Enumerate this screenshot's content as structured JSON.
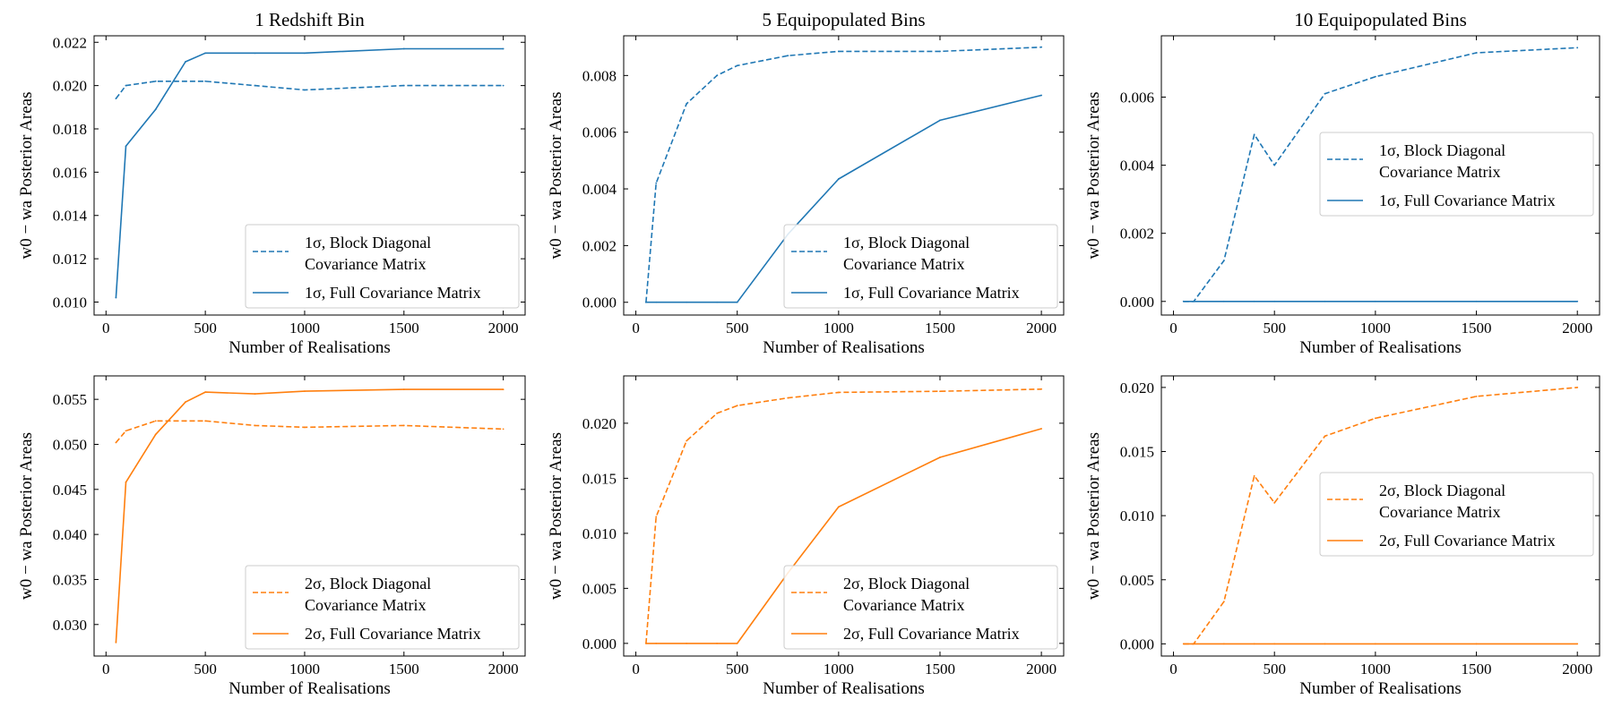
{
  "figure": {
    "colors": {
      "blue": "#1f77b4",
      "orange": "#ff7f0e"
    },
    "xlabel": "Number of Realisations",
    "ylabel": "w0 − wa Posterior Areas",
    "xticks": [
      0,
      500,
      1000,
      1500,
      2000
    ],
    "xlim": [
      -60,
      2110
    ]
  },
  "chart_data": [
    {
      "type": "line",
      "title": "1 Redshift Bin",
      "xlabel": "Number of Realisations",
      "ylabel": "w0 − wa Posterior Areas",
      "color": "#1f77b4",
      "ylim": [
        0.0094,
        0.0223
      ],
      "yticks": [
        "0.010",
        "0.012",
        "0.014",
        "0.016",
        "0.018",
        "0.020",
        "0.022"
      ],
      "legend_position": "lower-right",
      "x": [
        50,
        100,
        250,
        400,
        500,
        750,
        1000,
        1500,
        2000
      ],
      "series": [
        {
          "name": "1σ, Block Diagonal Covariance Matrix",
          "label_line1": "1σ, Block Diagonal",
          "label_line2": "Covariance Matrix",
          "style": "dashed",
          "values": [
            0.0194,
            0.02,
            0.0202,
            0.0202,
            0.0202,
            0.02,
            0.0198,
            0.02,
            0.02
          ]
        },
        {
          "name": "1σ, Full Covariance Matrix",
          "label_line1": "1σ, Full Covariance Matrix",
          "label_line2": "",
          "style": "solid",
          "values": [
            0.0102,
            0.0172,
            0.0189,
            0.0211,
            0.0215,
            0.0215,
            0.0215,
            0.0217,
            0.0217
          ]
        }
      ]
    },
    {
      "type": "line",
      "title": "5 Equipopulated Bins",
      "xlabel": "Number of Realisations",
      "ylabel": "w0 − wa Posterior Areas",
      "color": "#1f77b4",
      "ylim": [
        -0.00045,
        0.0094
      ],
      "yticks": [
        "0.000",
        "0.002",
        "0.004",
        "0.006",
        "0.008"
      ],
      "legend_position": "lower-right",
      "x": [
        50,
        100,
        250,
        400,
        500,
        750,
        1000,
        1500,
        2000
      ],
      "series": [
        {
          "name": "1σ, Block Diagonal Covariance Matrix",
          "label_line1": "1σ, Block Diagonal",
          "label_line2": "Covariance Matrix",
          "style": "dashed",
          "values": [
            0.0,
            0.0042,
            0.007,
            0.008,
            0.00835,
            0.0087,
            0.00885,
            0.00885,
            0.009
          ]
        },
        {
          "name": "1σ, Full Covariance Matrix",
          "label_line1": "1σ, Full Covariance Matrix",
          "label_line2": "",
          "style": "solid",
          "values": [
            0.0,
            0.0,
            0.0,
            0.0,
            0.0,
            0.0024,
            0.00435,
            0.00642,
            0.0073
          ]
        }
      ]
    },
    {
      "type": "line",
      "title": "10 Equipopulated Bins",
      "xlabel": "Number of Realisations",
      "ylabel": "w0 − wa Posterior Areas",
      "color": "#1f77b4",
      "ylim": [
        -0.0004,
        0.0078
      ],
      "yticks": [
        "0.000",
        "0.002",
        "0.004",
        "0.006"
      ],
      "legend_position": "center-right",
      "x": [
        50,
        100,
        250,
        400,
        500,
        750,
        1000,
        1500,
        2000
      ],
      "series": [
        {
          "name": "1σ, Block Diagonal Covariance Matrix",
          "label_line1": "1σ, Block Diagonal",
          "label_line2": "Covariance Matrix",
          "style": "dashed",
          "values": [
            0.0,
            0.0,
            0.0012,
            0.0049,
            0.004,
            0.0061,
            0.0066,
            0.0073,
            0.00745
          ]
        },
        {
          "name": "1σ, Full Covariance Matrix",
          "label_line1": "1σ, Full Covariance Matrix",
          "label_line2": "",
          "style": "solid",
          "values": [
            0.0,
            0.0,
            0.0,
            0.0,
            0.0,
            0.0,
            0.0,
            0.0,
            0.0
          ]
        }
      ]
    },
    {
      "type": "line",
      "title": "",
      "xlabel": "Number of Realisations",
      "ylabel": "w0 − wa Posterior Areas",
      "color": "#ff7f0e",
      "ylim": [
        0.0265,
        0.0576
      ],
      "yticks": [
        "0.030",
        "0.035",
        "0.040",
        "0.045",
        "0.050",
        "0.055"
      ],
      "legend_position": "lower-right",
      "x": [
        50,
        100,
        250,
        400,
        500,
        750,
        1000,
        1500,
        2000
      ],
      "series": [
        {
          "name": "2σ, Block Diagonal Covariance Matrix",
          "label_line1": "2σ, Block Diagonal",
          "label_line2": "Covariance Matrix",
          "style": "dashed",
          "values": [
            0.0502,
            0.0515,
            0.0526,
            0.0526,
            0.0526,
            0.0521,
            0.0519,
            0.0521,
            0.0517
          ]
        },
        {
          "name": "2σ, Full Covariance Matrix",
          "label_line1": "2σ, Full Covariance Matrix",
          "label_line2": "",
          "style": "solid",
          "values": [
            0.028,
            0.0458,
            0.0511,
            0.0547,
            0.0558,
            0.0556,
            0.0559,
            0.0561,
            0.0561
          ]
        }
      ]
    },
    {
      "type": "line",
      "title": "",
      "xlabel": "Number of Realisations",
      "ylabel": "w0 − wa Posterior Areas",
      "color": "#ff7f0e",
      "ylim": [
        -0.00115,
        0.0243
      ],
      "yticks": [
        "0.000",
        "0.005",
        "0.010",
        "0.015",
        "0.020"
      ],
      "legend_position": "lower-right",
      "x": [
        50,
        100,
        250,
        400,
        500,
        750,
        1000,
        1500,
        2000
      ],
      "series": [
        {
          "name": "2σ, Block Diagonal Covariance Matrix",
          "label_line1": "2σ, Block Diagonal",
          "label_line2": "Covariance Matrix",
          "style": "dashed",
          "values": [
            0.0,
            0.0115,
            0.0184,
            0.0209,
            0.0216,
            0.0223,
            0.0228,
            0.0229,
            0.0231
          ]
        },
        {
          "name": "2σ, Full Covariance Matrix",
          "label_line1": "2σ, Full Covariance Matrix",
          "label_line2": "",
          "style": "solid",
          "values": [
            0.0,
            0.0,
            0.0,
            0.0,
            0.0,
            0.0064,
            0.0124,
            0.0169,
            0.0195
          ]
        }
      ]
    },
    {
      "type": "line",
      "title": "",
      "xlabel": "Number of Realisations",
      "ylabel": "w0 − wa Posterior Areas",
      "color": "#ff7f0e",
      "ylim": [
        -0.00095,
        0.0209
      ],
      "yticks": [
        "0.000",
        "0.005",
        "0.010",
        "0.015",
        "0.020"
      ],
      "legend_position": "center-right",
      "x": [
        50,
        100,
        250,
        400,
        500,
        750,
        1000,
        1500,
        2000
      ],
      "series": [
        {
          "name": "2σ, Block Diagonal Covariance Matrix",
          "label_line1": "2σ, Block Diagonal",
          "label_line2": "Covariance Matrix",
          "style": "dashed",
          "values": [
            0.0,
            0.0,
            0.0033,
            0.0131,
            0.011,
            0.0162,
            0.0176,
            0.0193,
            0.02
          ]
        },
        {
          "name": "2σ, Full Covariance Matrix",
          "label_line1": "2σ, Full Covariance Matrix",
          "label_line2": "",
          "style": "solid",
          "values": [
            0.0,
            0.0,
            0.0,
            0.0,
            0.0,
            0.0,
            0.0,
            0.0,
            0.0
          ]
        }
      ]
    }
  ]
}
